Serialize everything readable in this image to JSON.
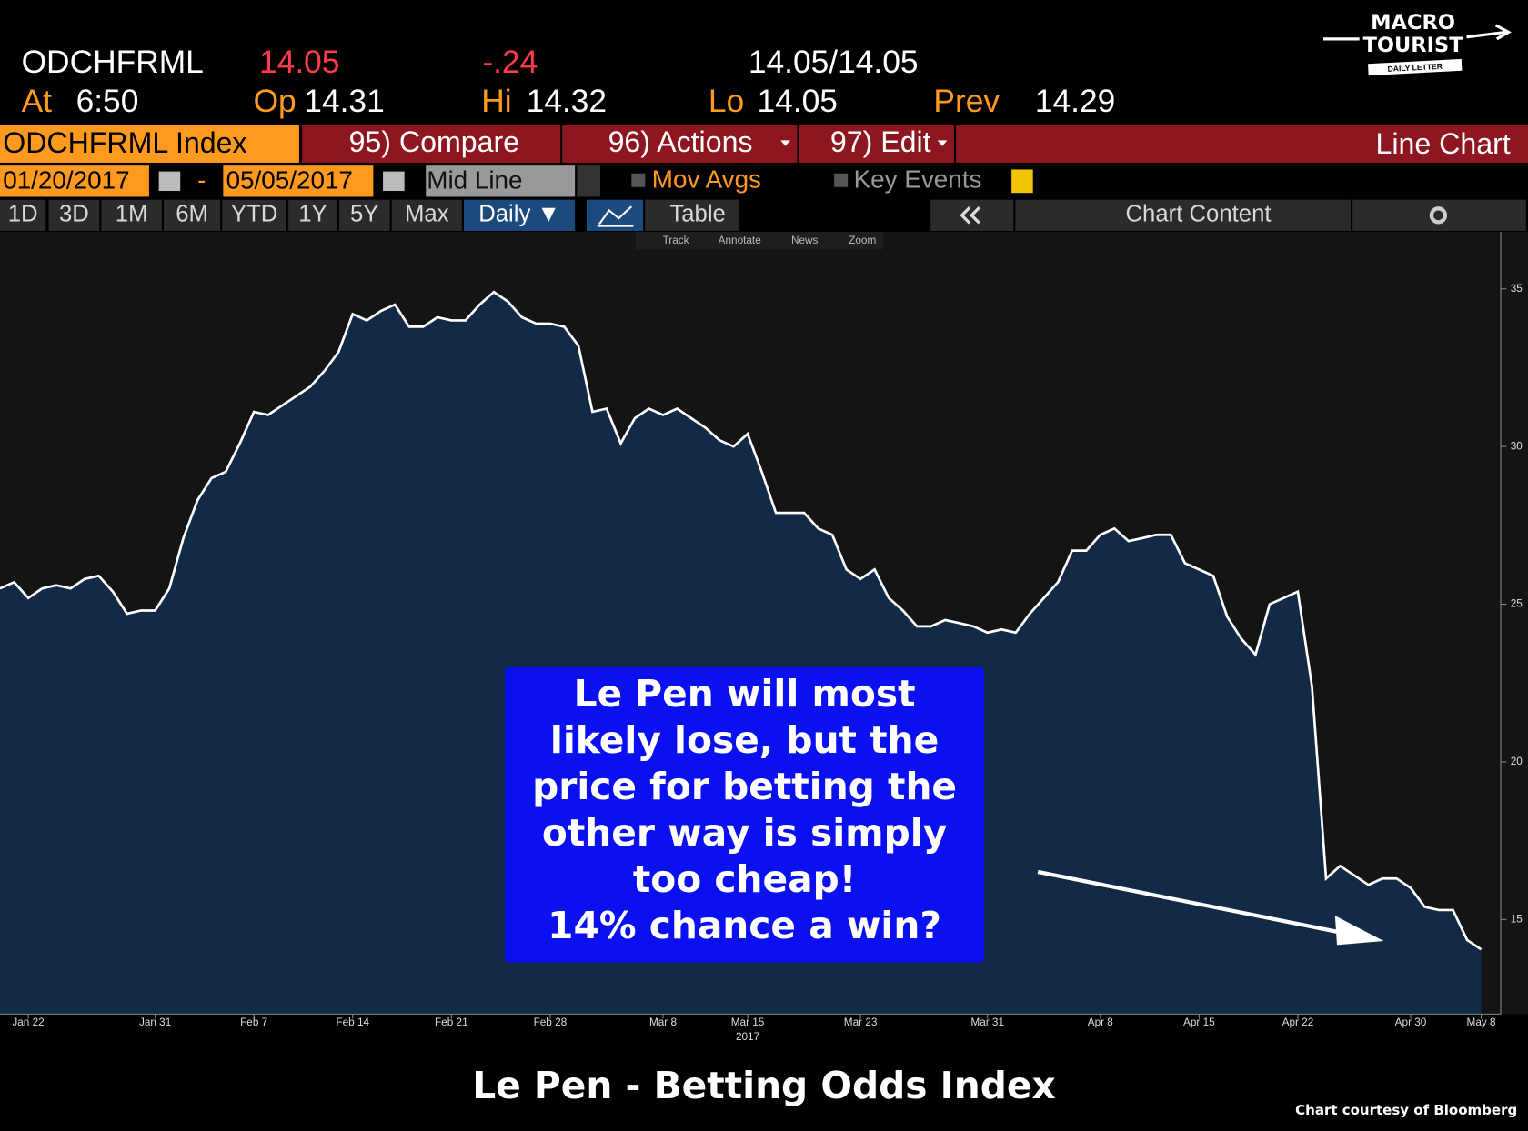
{
  "header": {
    "ticker": "ODCHFRML",
    "last": "14.05",
    "change": "-.24",
    "bid_ask": "14.05/14.05",
    "time_label": "At",
    "time": "6:50",
    "open_label": "Op",
    "open": "14.31",
    "high_label": "Hi",
    "high": "14.32",
    "low_label": "Lo",
    "low": "14.05",
    "prev_label": "Prev",
    "prev": "14.29"
  },
  "logo": {
    "line1": "MACRO",
    "line2": "TOURIST",
    "tagline": "DAILY LETTER"
  },
  "toolbar": {
    "security": "ODCHFRML Index",
    "menu": [
      "95) Compare",
      "96) Actions",
      "97) Edit"
    ],
    "view": "Line Chart",
    "start_date": "01/20/2017",
    "date_separator": "-",
    "end_date": "05/05/2017",
    "price_field": "Mid Line",
    "mov_avgs": "Mov Avgs",
    "key_events": "Key Events",
    "periods": [
      "1D",
      "3D",
      "1M",
      "6M",
      "YTD",
      "1Y",
      "5Y",
      "Max"
    ],
    "frequency": "Daily ▼",
    "table": "Table",
    "chart_content": "Chart Content",
    "tools": [
      "Track",
      "Annotate",
      "News",
      "Zoom"
    ]
  },
  "chart_data": {
    "type": "area",
    "color": "#ffffff",
    "area_color": "#132a47",
    "categories": [
      null,
      null,
      "Jan 22",
      null,
      null,
      null,
      null,
      null,
      null,
      null,
      null,
      "Jan 31",
      null,
      null,
      null,
      null,
      null,
      null,
      "Feb 7",
      null,
      null,
      null,
      null,
      null,
      null,
      "Feb 14",
      null,
      null,
      null,
      null,
      null,
      null,
      "Feb 21",
      null,
      null,
      null,
      null,
      null,
      null,
      "Feb 28",
      null,
      null,
      null,
      null,
      null,
      null,
      null,
      "Mar 8",
      null,
      null,
      null,
      null,
      null,
      "Mar 15",
      null,
      null,
      null,
      null,
      null,
      null,
      null,
      "Mar 23",
      null,
      null,
      null,
      null,
      null,
      null,
      null,
      null,
      "Mar 31",
      null,
      null,
      null,
      null,
      null,
      null,
      null,
      "Apr 8",
      null,
      null,
      null,
      null,
      null,
      null,
      "Apr 15",
      null,
      null,
      null,
      null,
      null,
      null,
      "Apr 22",
      null,
      null,
      null,
      null,
      null,
      null,
      null,
      "Apr 30",
      null,
      null,
      null,
      null,
      "May 8"
    ],
    "values": [
      25.5,
      25.7,
      25.2,
      25.5,
      25.6,
      25.5,
      25.8,
      25.9,
      25.4,
      24.7,
      24.8,
      24.8,
      25.5,
      27.1,
      28.3,
      29.0,
      29.2,
      30.1,
      31.1,
      31.0,
      31.3,
      31.6,
      31.9,
      32.4,
      33.0,
      34.2,
      34.0,
      34.3,
      34.5,
      33.8,
      33.8,
      34.1,
      34.0,
      34.0,
      34.5,
      34.9,
      34.6,
      34.1,
      33.9,
      33.9,
      33.8,
      33.2,
      31.1,
      31.2,
      30.1,
      30.9,
      31.2,
      31.0,
      31.2,
      30.9,
      30.6,
      30.2,
      30.0,
      30.4,
      29.2,
      27.9,
      27.9,
      27.9,
      27.4,
      27.2,
      26.1,
      25.8,
      26.1,
      25.2,
      24.8,
      24.3,
      24.3,
      24.5,
      24.4,
      24.3,
      24.1,
      24.2,
      24.1,
      24.7,
      25.2,
      25.7,
      26.7,
      26.7,
      27.2,
      27.4,
      27.0,
      27.1,
      27.2,
      27.2,
      26.3,
      26.1,
      25.9,
      24.6,
      23.9,
      23.4,
      25.0,
      25.2,
      25.4,
      22.4,
      16.3,
      16.7,
      16.4,
      16.1,
      16.3,
      16.3,
      16.0,
      15.4,
      15.3,
      15.3,
      14.35,
      14.05
    ],
    "ylim": [
      12,
      36.5
    ],
    "yticks": [
      15,
      20,
      25,
      30,
      35
    ],
    "year_label": "2017",
    "annotation": [
      "Le Pen will most",
      "likely lose, but the",
      "price for betting the",
      "other way is simply",
      "too cheap!",
      "14% chance a win?"
    ]
  },
  "footer": {
    "title": "Le Pen - Betting Odds Index",
    "credit": "Chart courtesy of Bloomberg"
  }
}
